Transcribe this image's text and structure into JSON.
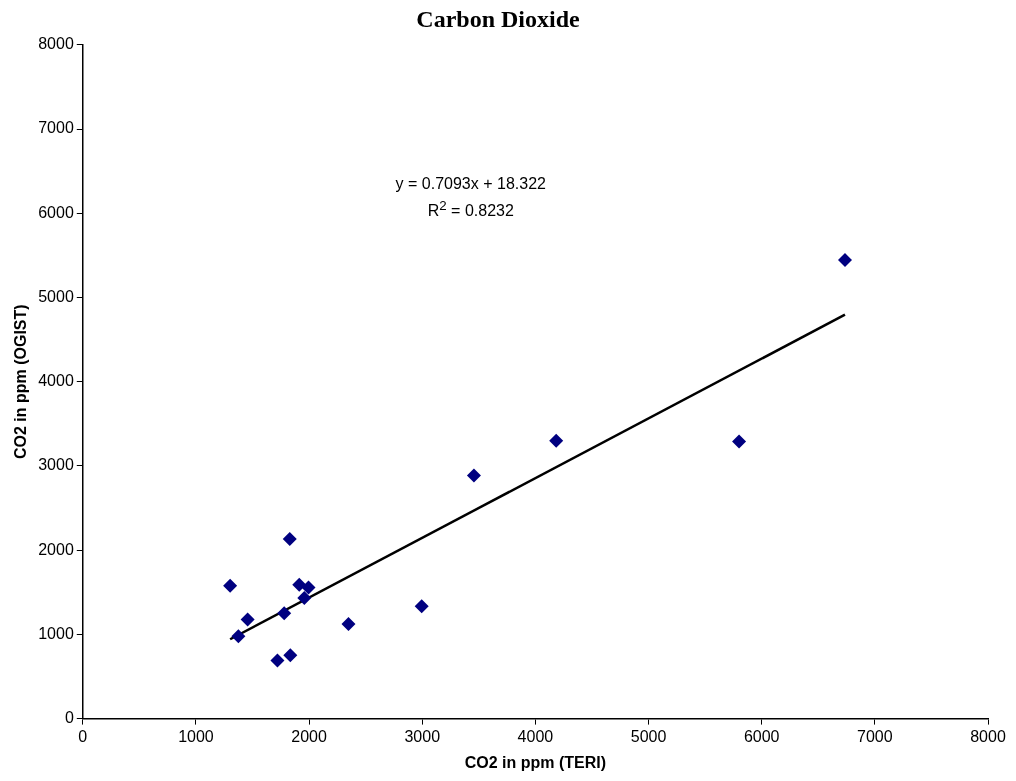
{
  "chart_data": {
    "type": "scatter",
    "title": "Carbon Dioxide",
    "xlabel": "CO2 in ppm (TERI)",
    "ylabel": "CO2 in ppm (OGIST)",
    "xlim": [
      0,
      8000
    ],
    "xticks": [
      0,
      1000,
      2000,
      3000,
      4000,
      5000,
      6000,
      7000,
      8000
    ],
    "ylim": [
      0,
      8000
    ],
    "yticks": [
      0,
      1000,
      2000,
      3000,
      4000,
      5000,
      6000,
      7000,
      8000
    ],
    "marker": "diamond",
    "series": [
      {
        "color": "#000080",
        "x": [
          1302,
          1375,
          1457,
          1720,
          1834,
          1780,
          1829,
          1913,
          1958,
          1995,
          2348,
          2995,
          3457,
          4184,
          5800,
          6736
        ],
        "values": [
          1577,
          979,
          1177,
          691,
          753,
          1251,
          2132,
          1589,
          1432,
          1556,
          1123,
          1333,
          2885,
          3299,
          3289,
          5444
        ]
      },
      {
        "type": "line",
        "color": "#000000",
        "marker": "none",
        "x": [
          1302,
          6736
        ],
        "values": [
          942,
          4796
        ]
      }
    ],
    "annotations": [
      "y = 0.7093x + 18.322",
      "R$^{2}$ = 0.8232"
    ]
  }
}
